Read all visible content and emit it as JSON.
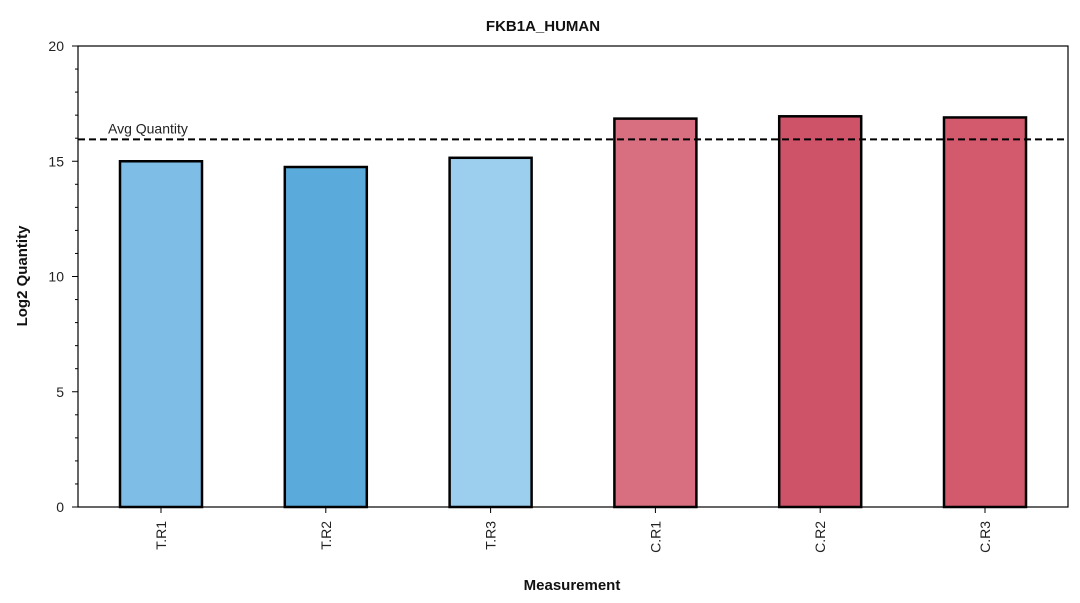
{
  "chart_data": {
    "type": "bar",
    "title": "FKB1A_HUMAN",
    "xlabel": "Measurement",
    "ylabel": "Log2 Quantity",
    "ylim": [
      0,
      20
    ],
    "yticks": [
      0,
      5,
      10,
      15,
      20
    ],
    "categories": [
      "T.R1",
      "T.R2",
      "T.R3",
      "C.R1",
      "C.R2",
      "C.R3"
    ],
    "values": [
      15.0,
      14.75,
      15.15,
      16.85,
      16.95,
      16.9
    ],
    "colors": [
      "#7dbde6",
      "#5aabdc",
      "#9ccfee",
      "#d86f80",
      "#cf5368",
      "#d35a6d"
    ],
    "reference_line": {
      "label": "Avg Quantity",
      "value": 15.95,
      "style": "dashed"
    },
    "grid": false,
    "legend": "none"
  }
}
